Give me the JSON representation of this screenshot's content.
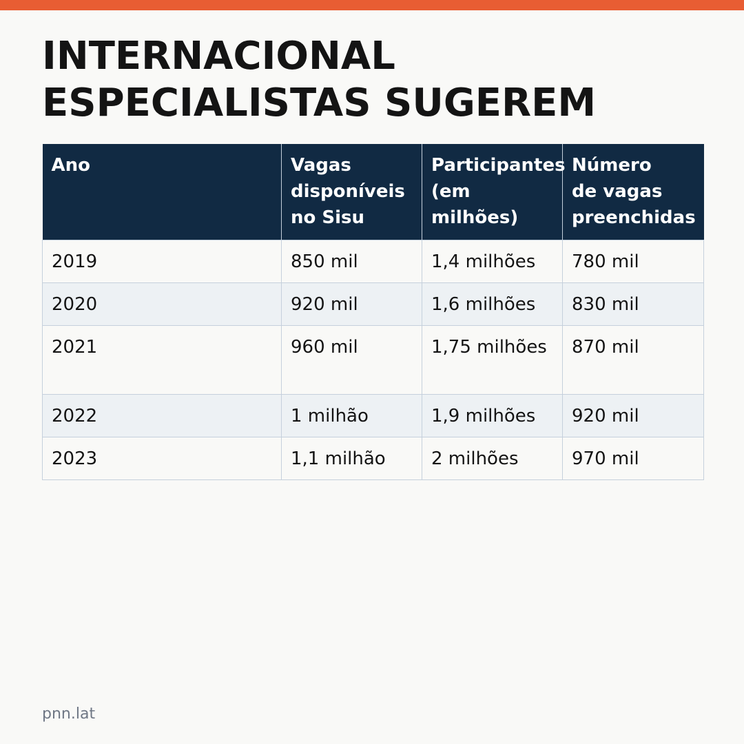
{
  "accent_color": "#e85d33",
  "header_color": "#112a43",
  "title": {
    "line1": "INTERNACIONAL",
    "line2": "ESPECIALISTAS SUGEREM"
  },
  "table": {
    "headers": [
      [
        "Ano"
      ],
      [
        "Vagas",
        "disponíveis",
        "no Sisu"
      ],
      [
        "Participantes",
        "(em",
        "milhões)"
      ],
      [
        "Número",
        "de vagas",
        "preenchidas"
      ]
    ],
    "rows": [
      [
        "2019",
        "850 mil",
        "1,4 milhões",
        "780 mil"
      ],
      [
        "2020",
        "920 mil",
        "1,6 milhões",
        "830 mil"
      ],
      [
        "2021",
        "960 mil",
        "1,75 milhões",
        "870 mil"
      ],
      [
        "2022",
        "1 milhão",
        "1,9 milhões",
        "920 mil"
      ],
      [
        "2023",
        "1,1 milhão",
        "2 milhões",
        "970 mil"
      ]
    ]
  },
  "footer": {
    "source": "pnn.lat"
  }
}
